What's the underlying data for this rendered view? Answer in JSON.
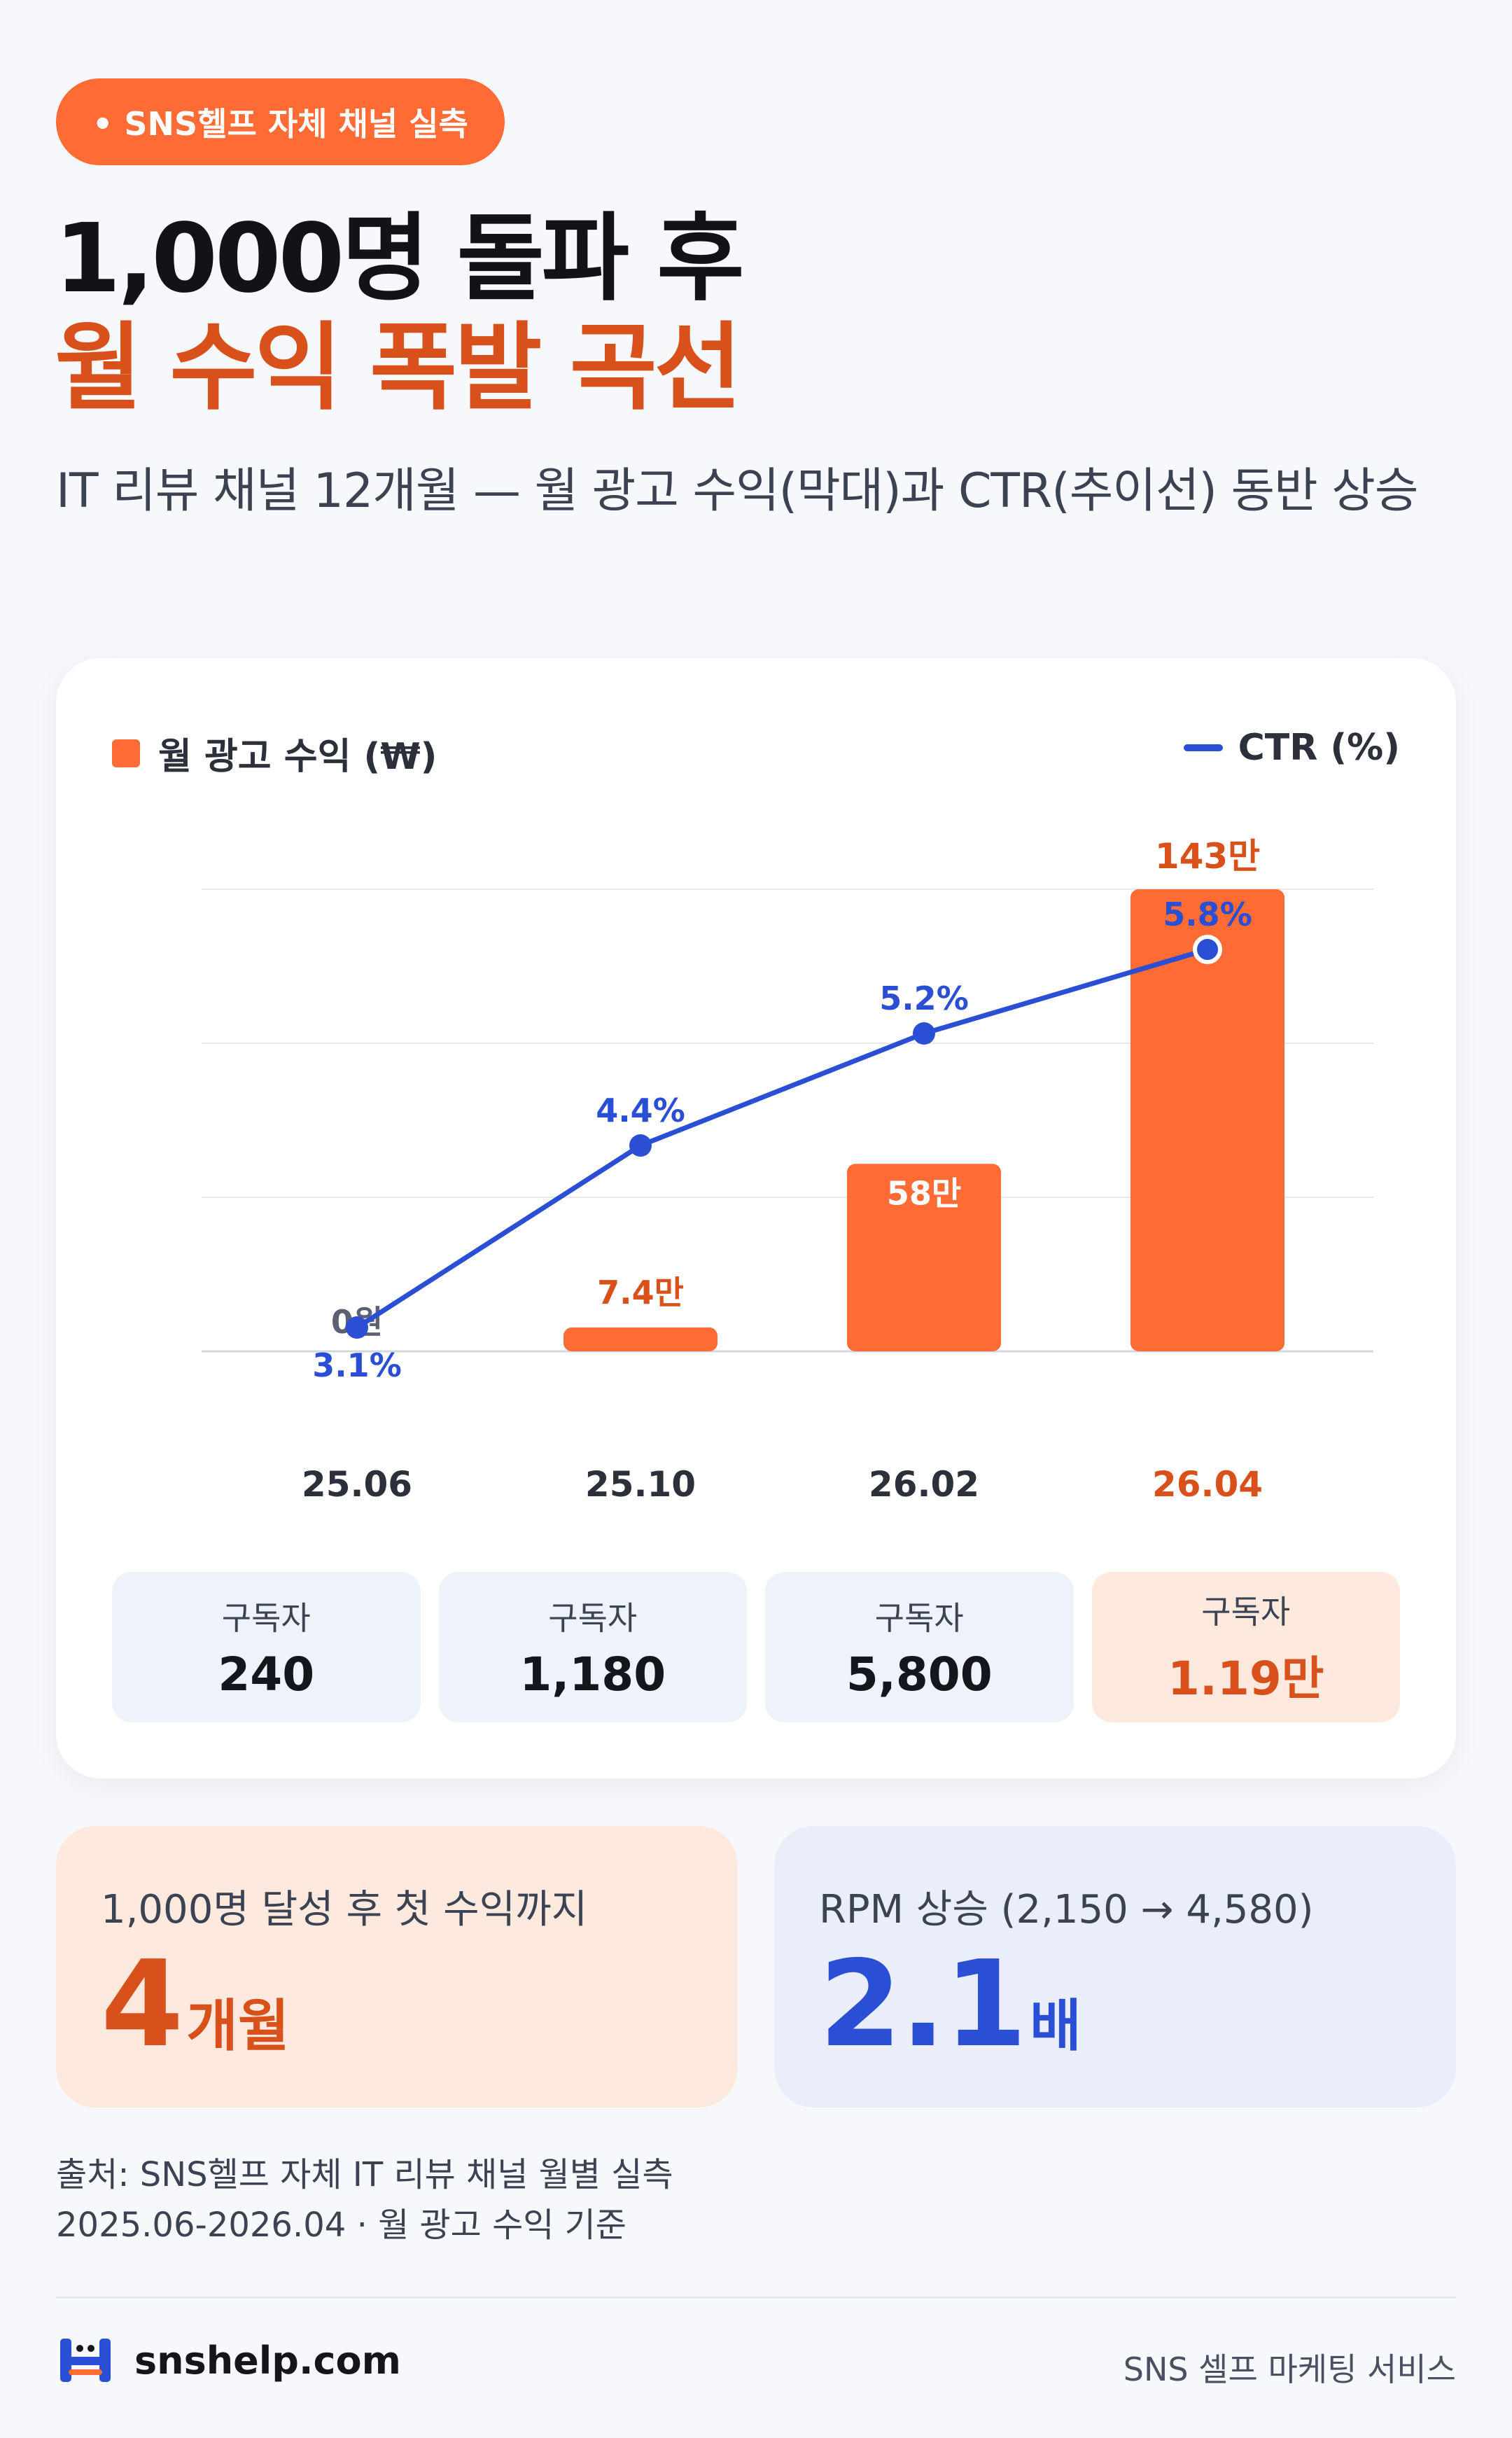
{
  "badge": "• SNS헬프 자체 채널 실측",
  "title": {
    "line1": "1,000명 돌파 후",
    "line2": "월 수익 폭발 곡선"
  },
  "subtitle": "IT 리뷰 채널 12개월 — 월 광고 수익(막대)과 CTR(추이선) 동반 상승",
  "legend": {
    "bar": "월 광고 수익 (₩)",
    "line": "CTR (%)"
  },
  "colors": {
    "bar": "#ff6b35",
    "line": "#2b4fd4",
    "accent": "#d8501a",
    "grid": "#e6e8ee"
  },
  "chart_data": {
    "type": "bar+line",
    "categories": [
      "25.06",
      "25.10",
      "26.02",
      "26.04"
    ],
    "series": [
      {
        "name": "월 광고 수익 (₩)",
        "type": "bar",
        "values": [
          0,
          74000,
          580000,
          1430000
        ],
        "labels": [
          "0원",
          "7.4만",
          "58만",
          "143만"
        ]
      },
      {
        "name": "CTR (%)",
        "type": "line",
        "values": [
          3.1,
          4.4,
          5.2,
          5.8
        ],
        "labels": [
          "3.1%",
          "4.4%",
          "5.2%",
          "5.8%"
        ]
      }
    ],
    "bar_axis": [
      0,
      1430000
    ],
    "line_axis": [
      2.7,
      6.0
    ],
    "grid": true,
    "highlight_category": "26.04",
    "legend_placement": "top"
  },
  "subscribers": [
    {
      "label": "구독자",
      "value": "240"
    },
    {
      "label": "구독자",
      "value": "1,180"
    },
    {
      "label": "구독자",
      "value": "5,800"
    },
    {
      "label": "구독자",
      "value": "1.19만",
      "highlight": true
    }
  ],
  "stats": [
    {
      "label": "1,000명 달성 후 첫 수익까지",
      "number": "4",
      "unit": "개월"
    },
    {
      "label": "RPM 상승 (2,150 → 4,580)",
      "number": "2.1",
      "unit": "배"
    }
  ],
  "source": {
    "line1": "출처: SNS헬프 자체 IT 리뷰 채널 월별 실측",
    "line2": "2025.06-2026.04 · 월 광고 수익 기준"
  },
  "footer": {
    "logo_icon": "snshelp-logo-icon",
    "site": "snshelp.com",
    "tagline": "SNS 셀프 마케팅 서비스"
  }
}
